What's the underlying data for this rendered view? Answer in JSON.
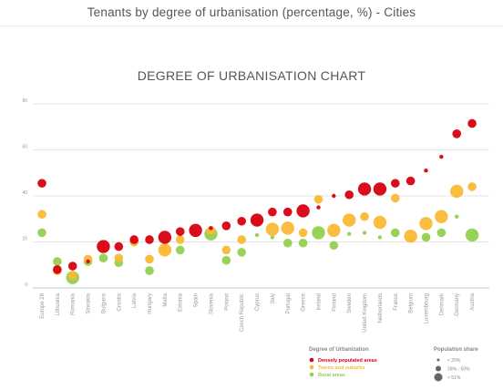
{
  "page": {
    "title": "Tenants by degree of urbanisation (percentage, %) - Cities"
  },
  "chart_data": {
    "type": "scatter",
    "title": "DEGREE OF URBANISATION CHART",
    "ylim": [
      0,
      80
    ],
    "yticks": [
      0,
      20,
      40,
      60,
      80
    ],
    "grid": true,
    "categories": [
      "Europe 28",
      "Lithuania",
      "Romania",
      "Slovakia",
      "Bulgaria",
      "Croatia",
      "Latvia",
      "Hungary",
      "Malta",
      "Estonia",
      "Spain",
      "Slovenia",
      "Poland",
      "Czech Republic",
      "Cyprus",
      "Italy",
      "Portugal",
      "Greece",
      "Ireland",
      "Finland",
      "Sweden",
      "United Kingdom",
      "Netherlands",
      "France",
      "Belgium",
      "Luxembourg",
      "Denmark",
      "Germany",
      "Austria"
    ],
    "series": [
      {
        "name": "Densely populated areas",
        "color": "#d7000f",
        "values": [
          45.5,
          8,
          9.5,
          11.5,
          18,
          18,
          21,
          21,
          22,
          24.5,
          25,
          26,
          27,
          29,
          29.5,
          33,
          33,
          33.5,
          35,
          40,
          40.5,
          43,
          43,
          45.5,
          46.5,
          51,
          57,
          67,
          71.5
        ],
        "share": [
          2,
          2,
          2,
          1,
          3,
          2,
          2,
          2,
          3,
          2,
          3,
          1,
          2,
          2,
          3,
          2,
          2,
          3,
          1,
          1,
          2,
          3,
          3,
          2,
          2,
          1,
          1,
          2,
          2
        ]
      },
      {
        "name": "Towns and suburbs",
        "color": "#fab936",
        "values": [
          32,
          7.5,
          5.5,
          12.5,
          17,
          13,
          20,
          12.5,
          16.5,
          21,
          23,
          25,
          16.5,
          21,
          29,
          25.5,
          26,
          24,
          38.5,
          25,
          29.5,
          31,
          28.5,
          39,
          22.5,
          28,
          31,
          42,
          44
        ],
        "share": [
          2,
          2,
          2,
          2,
          1,
          2,
          2,
          2,
          3,
          2,
          1,
          2,
          2,
          2,
          2,
          3,
          3,
          2,
          2,
          3,
          3,
          2,
          3,
          2,
          3,
          3,
          3,
          3,
          2
        ]
      },
      {
        "name": "Rural areas",
        "color": "#92d050",
        "values": [
          24,
          11.5,
          4.5,
          11.5,
          13,
          11,
          20,
          7.5,
          17,
          16.5,
          23.5,
          23.5,
          12,
          15.5,
          23,
          22,
          19.5,
          19.5,
          24,
          18.5,
          23.5,
          24,
          22,
          24,
          21,
          22,
          24,
          31,
          23
        ],
        "share": [
          2,
          2,
          3,
          2,
          2,
          2,
          2,
          2,
          1,
          2,
          1,
          3,
          2,
          2,
          1,
          1,
          2,
          2,
          3,
          2,
          1,
          1,
          1,
          2,
          1,
          2,
          2,
          1,
          3
        ]
      }
    ],
    "legend": {
      "title": "Degree of Urbanization",
      "items": [
        "Densely populated areas",
        "Towns and suburbs",
        "Rural areas"
      ],
      "size_title": "Population share",
      "size_items": [
        "< 25%",
        "26% - 50%",
        "> 51%"
      ]
    }
  }
}
